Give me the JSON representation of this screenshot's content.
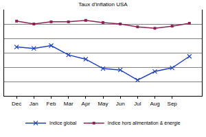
{
  "chart_data": {
    "type": "line",
    "title": "Taux d'inflation USA",
    "categories": [
      "Dec",
      "Jan",
      "Feb",
      "Mar",
      "Apr",
      "May",
      "Jun",
      "Jul",
      "Aug",
      "Sep",
      null
    ],
    "series": [
      {
        "name": "Indice global",
        "color": "#1f3fc4",
        "marker": "x",
        "line_style": "solid",
        "values": [
          3.4,
          3.3,
          3.5,
          2.85,
          2.55,
          1.9,
          1.8,
          1.1,
          1.7,
          1.95,
          2.75
        ]
      },
      {
        "name": "Indice hors alimentation & énergie",
        "color": "#8b2252",
        "marker": "square",
        "line_style": "solid",
        "values": [
          5.2,
          5.0,
          5.15,
          5.15,
          5.25,
          5.1,
          5.0,
          4.8,
          4.7,
          4.85,
          5.05
        ]
      }
    ],
    "ylim": [
      0,
      6
    ],
    "yticks": [
      0,
      1,
      2,
      3,
      4,
      5,
      6
    ],
    "grid": true,
    "legend": "bottom",
    "tick_labels": "x"
  }
}
